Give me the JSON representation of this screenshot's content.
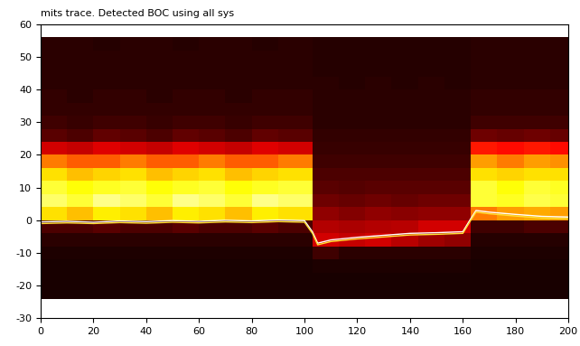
{
  "chart_data": {
    "type": "heatmap",
    "title": "mits trace. Detected BOC using all sys",
    "xlim": [
      0,
      200
    ],
    "xticks": [
      0,
      20,
      40,
      60,
      80,
      100,
      120,
      140,
      160,
      180,
      200
    ],
    "ylim": [
      -30,
      60
    ],
    "yticks": [
      -30,
      -20,
      -10,
      0,
      10,
      20,
      30,
      40,
      50,
      60
    ],
    "x_edges": [
      0,
      10,
      20,
      30,
      40,
      50,
      60,
      70,
      80,
      90,
      103,
      113,
      123,
      133,
      143,
      153,
      163,
      173,
      183,
      193,
      200
    ],
    "y_edges": [
      -24,
      -20,
      -16,
      -12,
      -8,
      -4,
      0,
      4,
      8,
      12,
      16,
      20,
      24,
      28,
      32,
      36,
      40,
      44,
      48,
      52,
      56
    ],
    "cell_range": [
      0,
      1
    ],
    "cells": [
      [
        0.02,
        0.02,
        0.02,
        0.03,
        0.05,
        0.1,
        0.7,
        0.85,
        0.8,
        0.7,
        0.55,
        0.3,
        0.12,
        0.08,
        0.06,
        0.06,
        0.05,
        0.05,
        0.05,
        0.05
      ],
      [
        0.02,
        0.02,
        0.02,
        0.03,
        0.05,
        0.1,
        0.65,
        0.8,
        0.75,
        0.65,
        0.5,
        0.28,
        0.1,
        0.07,
        0.06,
        0.05,
        0.05,
        0.05,
        0.05,
        0.05
      ],
      [
        0.02,
        0.02,
        0.02,
        0.03,
        0.05,
        0.12,
        0.72,
        0.88,
        0.78,
        0.68,
        0.5,
        0.32,
        0.13,
        0.08,
        0.06,
        0.06,
        0.05,
        0.05,
        0.05,
        0.04
      ],
      [
        0.02,
        0.02,
        0.02,
        0.03,
        0.05,
        0.1,
        0.7,
        0.85,
        0.8,
        0.7,
        0.55,
        0.3,
        0.12,
        0.08,
        0.06,
        0.06,
        0.05,
        0.05,
        0.05,
        0.05
      ],
      [
        0.02,
        0.02,
        0.02,
        0.03,
        0.05,
        0.1,
        0.65,
        0.8,
        0.75,
        0.65,
        0.5,
        0.28,
        0.1,
        0.07,
        0.06,
        0.05,
        0.05,
        0.05,
        0.05,
        0.05
      ],
      [
        0.02,
        0.02,
        0.02,
        0.03,
        0.05,
        0.12,
        0.72,
        0.88,
        0.78,
        0.68,
        0.5,
        0.32,
        0.13,
        0.08,
        0.06,
        0.06,
        0.05,
        0.05,
        0.05,
        0.04
      ],
      [
        0.02,
        0.02,
        0.02,
        0.03,
        0.05,
        0.1,
        0.7,
        0.85,
        0.8,
        0.7,
        0.55,
        0.3,
        0.12,
        0.08,
        0.06,
        0.06,
        0.05,
        0.05,
        0.05,
        0.05
      ],
      [
        0.02,
        0.02,
        0.02,
        0.03,
        0.05,
        0.1,
        0.65,
        0.8,
        0.75,
        0.65,
        0.5,
        0.28,
        0.1,
        0.07,
        0.06,
        0.05,
        0.05,
        0.05,
        0.05,
        0.05
      ],
      [
        0.02,
        0.02,
        0.02,
        0.03,
        0.05,
        0.12,
        0.72,
        0.88,
        0.78,
        0.68,
        0.5,
        0.32,
        0.13,
        0.08,
        0.06,
        0.06,
        0.05,
        0.05,
        0.05,
        0.04
      ],
      [
        0.02,
        0.02,
        0.02,
        0.03,
        0.05,
        0.1,
        0.7,
        0.85,
        0.8,
        0.7,
        0.55,
        0.3,
        0.12,
        0.08,
        0.06,
        0.06,
        0.05,
        0.05,
        0.05,
        0.05
      ],
      [
        0.02,
        0.02,
        0.03,
        0.08,
        0.3,
        0.25,
        0.2,
        0.15,
        0.12,
        0.1,
        0.08,
        0.07,
        0.06,
        0.05,
        0.05,
        0.05,
        0.05,
        0.04,
        0.04,
        0.04
      ],
      [
        0.02,
        0.02,
        0.03,
        0.05,
        0.28,
        0.24,
        0.18,
        0.14,
        0.11,
        0.1,
        0.08,
        0.07,
        0.06,
        0.05,
        0.05,
        0.05,
        0.04,
        0.04,
        0.04,
        0.04
      ],
      [
        0.02,
        0.02,
        0.03,
        0.05,
        0.3,
        0.25,
        0.2,
        0.15,
        0.12,
        0.1,
        0.08,
        0.07,
        0.06,
        0.05,
        0.05,
        0.05,
        0.05,
        0.04,
        0.04,
        0.04
      ],
      [
        0.02,
        0.02,
        0.03,
        0.05,
        0.26,
        0.26,
        0.19,
        0.14,
        0.12,
        0.1,
        0.08,
        0.07,
        0.06,
        0.05,
        0.05,
        0.05,
        0.04,
        0.04,
        0.04,
        0.04
      ],
      [
        0.02,
        0.02,
        0.03,
        0.05,
        0.22,
        0.3,
        0.2,
        0.15,
        0.12,
        0.1,
        0.08,
        0.07,
        0.06,
        0.05,
        0.05,
        0.05,
        0.05,
        0.04,
        0.04,
        0.04
      ],
      [
        0.02,
        0.02,
        0.03,
        0.05,
        0.2,
        0.3,
        0.2,
        0.15,
        0.12,
        0.1,
        0.08,
        0.07,
        0.06,
        0.05,
        0.05,
        0.05,
        0.04,
        0.04,
        0.04,
        0.04
      ],
      [
        0.02,
        0.02,
        0.02,
        0.03,
        0.04,
        0.08,
        0.55,
        0.8,
        0.8,
        0.7,
        0.6,
        0.4,
        0.15,
        0.08,
        0.06,
        0.06,
        0.05,
        0.05,
        0.05,
        0.05
      ],
      [
        0.02,
        0.02,
        0.02,
        0.03,
        0.04,
        0.08,
        0.6,
        0.78,
        0.75,
        0.68,
        0.55,
        0.38,
        0.14,
        0.08,
        0.06,
        0.06,
        0.05,
        0.05,
        0.05,
        0.05
      ],
      [
        0.02,
        0.02,
        0.02,
        0.03,
        0.04,
        0.1,
        0.62,
        0.82,
        0.8,
        0.7,
        0.6,
        0.4,
        0.15,
        0.08,
        0.06,
        0.06,
        0.05,
        0.05,
        0.05,
        0.05
      ],
      [
        0.02,
        0.02,
        0.02,
        0.03,
        0.04,
        0.1,
        0.6,
        0.8,
        0.78,
        0.7,
        0.58,
        0.38,
        0.14,
        0.08,
        0.06,
        0.06,
        0.05,
        0.05,
        0.05,
        0.05
      ]
    ],
    "traces": [
      {
        "color": "#ffffff",
        "x": [
          0,
          10,
          20,
          30,
          40,
          50,
          60,
          70,
          80,
          90,
          100,
          103,
          105,
          110,
          120,
          130,
          140,
          150,
          160,
          163,
          165,
          170,
          180,
          190,
          200
        ],
        "y": [
          -0.5,
          -0.3,
          -0.6,
          -0.2,
          -0.4,
          -0.1,
          -0.3,
          0.0,
          -0.2,
          0.1,
          -0.1,
          -3.5,
          -7.0,
          -6.0,
          -5.2,
          -4.6,
          -4.0,
          -3.8,
          -3.5,
          0.5,
          3.0,
          2.5,
          1.8,
          1.2,
          1.0
        ]
      },
      {
        "color": "#ffe033",
        "x": [
          0,
          10,
          20,
          30,
          40,
          50,
          60,
          70,
          80,
          90,
          100,
          103,
          105,
          110,
          120,
          130,
          140,
          150,
          160,
          163,
          165,
          170,
          180,
          190,
          200
        ],
        "y": [
          -1.0,
          -0.8,
          -1.0,
          -0.7,
          -0.9,
          -0.6,
          -0.8,
          -0.5,
          -0.7,
          -0.4,
          -0.6,
          -4.0,
          -7.5,
          -6.5,
          -5.7,
          -5.1,
          -4.5,
          -4.3,
          -4.0,
          0.0,
          2.5,
          2.0,
          1.3,
          0.7,
          0.5
        ]
      }
    ]
  }
}
